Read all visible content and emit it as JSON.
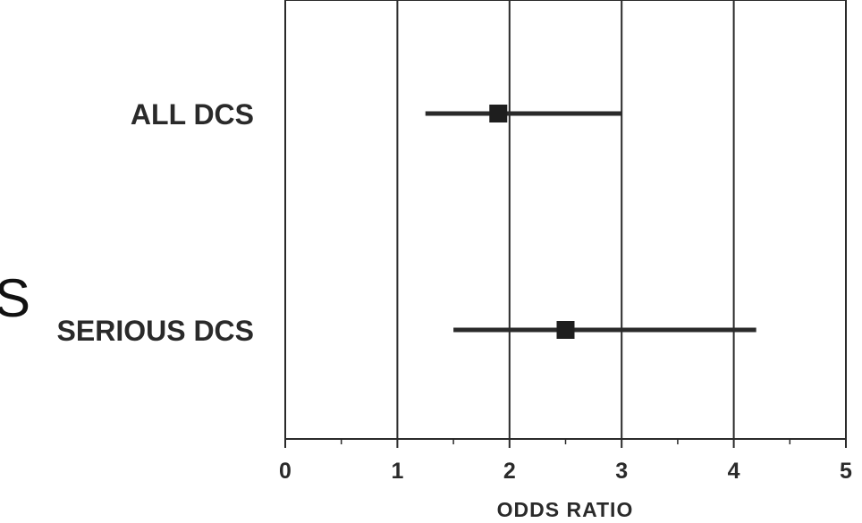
{
  "fragments": {
    "big_letter": "S"
  },
  "chart_data": {
    "type": "forest",
    "title": "",
    "xlabel": "ODDS RATIO",
    "ylabel": "",
    "xlim": [
      0,
      5
    ],
    "x_ticks": [
      0,
      1,
      2,
      3,
      4,
      5
    ],
    "x_tick_labels": [
      "0",
      "1",
      "2",
      "3",
      "4",
      "5"
    ],
    "grid_x": [
      1,
      2,
      3,
      4
    ],
    "minor_ticks": true,
    "grid": true,
    "series": [
      {
        "label": "ALL DCS",
        "estimate": 1.9,
        "ci_low": 1.25,
        "ci_high": 3.0
      },
      {
        "label": "SERIOUS DCS",
        "estimate": 2.5,
        "ci_low": 1.5,
        "ci_high": 4.2
      }
    ],
    "colors": {
      "line": "#2a2a2a",
      "marker": "#1e1e1e",
      "text": "#2a2a2a"
    }
  }
}
